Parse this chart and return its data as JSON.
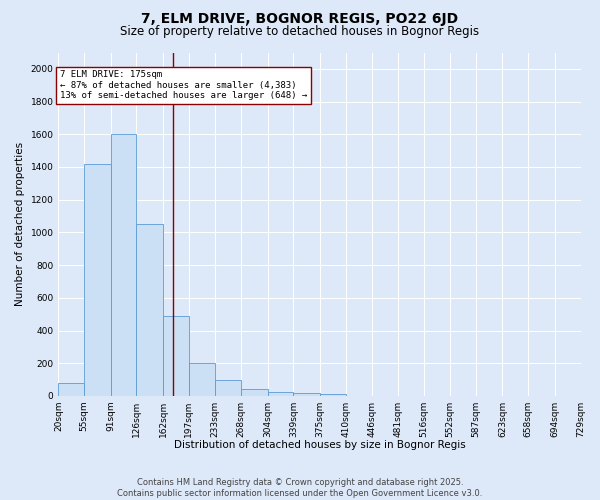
{
  "title": "7, ELM DRIVE, BOGNOR REGIS, PO22 6JD",
  "subtitle": "Size of property relative to detached houses in Bognor Regis",
  "xlabel": "Distribution of detached houses by size in Bognor Regis",
  "ylabel": "Number of detached properties",
  "bin_labels": [
    "20sqm",
    "55sqm",
    "91sqm",
    "126sqm",
    "162sqm",
    "197sqm",
    "233sqm",
    "268sqm",
    "304sqm",
    "339sqm",
    "375sqm",
    "410sqm",
    "446sqm",
    "481sqm",
    "516sqm",
    "552sqm",
    "587sqm",
    "623sqm",
    "658sqm",
    "694sqm",
    "729sqm"
  ],
  "bin_edges": [
    20,
    55,
    91,
    126,
    162,
    197,
    233,
    268,
    304,
    339,
    375,
    410,
    446,
    481,
    516,
    552,
    587,
    623,
    658,
    694,
    729
  ],
  "bar_heights": [
    80,
    1420,
    1600,
    1050,
    490,
    200,
    100,
    40,
    25,
    20,
    15,
    0,
    0,
    0,
    0,
    0,
    0,
    0,
    0,
    0
  ],
  "bar_color": "#cce0f5",
  "bar_edge_color": "#5b9bd5",
  "vline_x": 175,
  "vline_color": "#8b0000",
  "annotation_title": "7 ELM DRIVE: 175sqm",
  "annotation_line1": "← 87% of detached houses are smaller (4,383)",
  "annotation_line2": "13% of semi-detached houses are larger (648) →",
  "annotation_box_color": "#ffffff",
  "annotation_box_edge": "#8b0000",
  "ylim": [
    0,
    2100
  ],
  "yticks": [
    0,
    200,
    400,
    600,
    800,
    1000,
    1200,
    1400,
    1600,
    1800,
    2000
  ],
  "bg_color": "#dde8f8",
  "plot_bg_color": "#dde8f8",
  "footer_line1": "Contains HM Land Registry data © Crown copyright and database right 2025.",
  "footer_line2": "Contains public sector information licensed under the Open Government Licence v3.0.",
  "title_fontsize": 10,
  "subtitle_fontsize": 8.5,
  "label_fontsize": 7.5,
  "tick_fontsize": 6.5,
  "footer_fontsize": 6
}
